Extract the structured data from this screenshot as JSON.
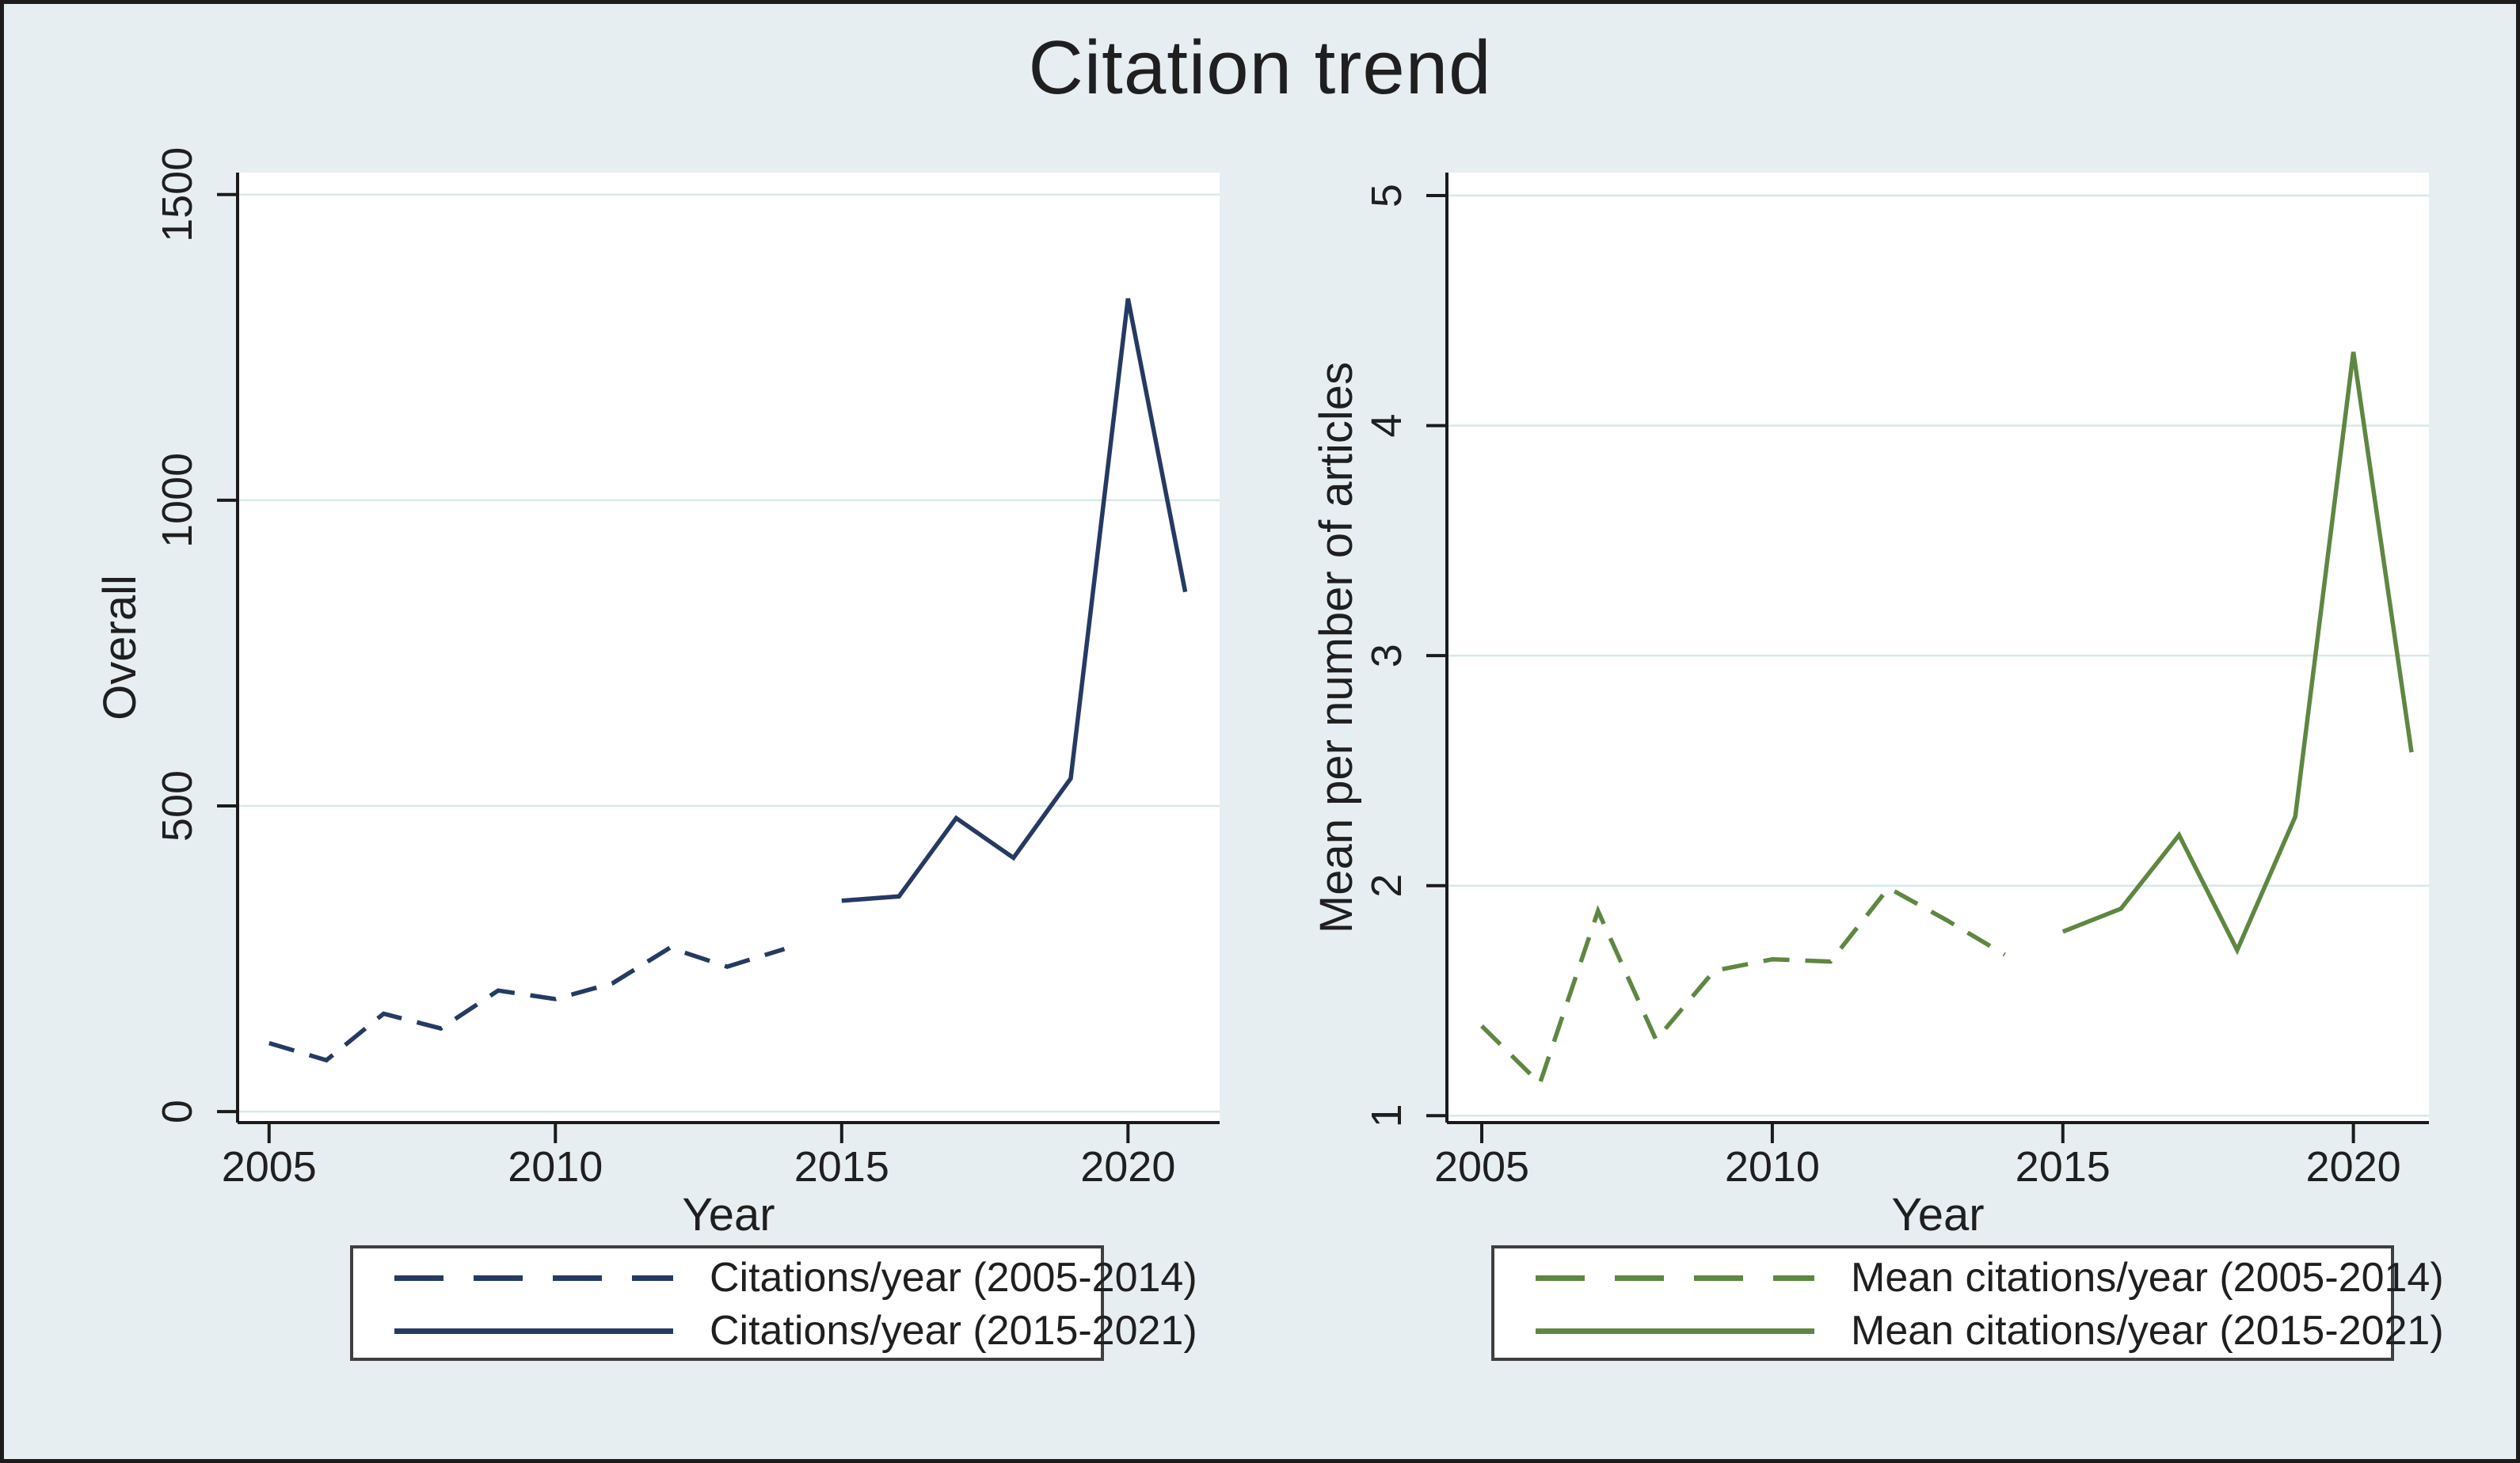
{
  "figure": {
    "title": "Citation trend",
    "background": "#e7eef1",
    "plot_background": "#ffffff",
    "grid_color": "#d8e8e8",
    "axis_color": "#1b1b1b",
    "text_color": "#1f1f1f",
    "outer_border_color": "#1c1c1c",
    "legend_border_color": "#3f3f3f",
    "legend_background": "#ffffff",
    "navy": "#253a63",
    "green": "#5e8740"
  },
  "chart_data": [
    {
      "type": "line",
      "panel": "overall",
      "xlabel": "Year",
      "ylabel": "Overall",
      "xticks": [
        2005,
        2010,
        2015,
        2020
      ],
      "yticks": [
        0,
        500,
        1000,
        1500
      ],
      "xlim": [
        2004.45,
        2021.6
      ],
      "ylim": [
        -18,
        1536
      ],
      "grid": true,
      "legend_position": "below",
      "series": [
        {
          "name": "Citations/year (2005-2014)",
          "style": "dashed",
          "color": "#253a63",
          "x": [
            2005,
            2006,
            2007,
            2008,
            2009,
            2010,
            2011,
            2012,
            2013,
            2014
          ],
          "values": [
            112,
            84,
            160,
            136,
            198,
            184,
            210,
            268,
            237,
            266
          ]
        },
        {
          "name": "Citations/year (2015-2021)",
          "style": "solid",
          "color": "#253a63",
          "x": [
            2015,
            2016,
            2017,
            2018,
            2019,
            2020,
            2021
          ],
          "values": [
            345,
            352,
            480,
            415,
            545,
            1330,
            850
          ]
        }
      ]
    },
    {
      "type": "line",
      "panel": "mean-per-articles",
      "xlabel": "Year",
      "ylabel": "Mean per number of articles",
      "xticks": [
        2005,
        2010,
        2015,
        2020
      ],
      "yticks": [
        1,
        2,
        3,
        4,
        5
      ],
      "xlim": [
        2004.4,
        2021.3
      ],
      "ylim": [
        0.97,
        5.1
      ],
      "grid": true,
      "legend_position": "below",
      "series": [
        {
          "name": "Mean citations/year (2005-2014)",
          "style": "dashed",
          "color": "#5e8740",
          "x": [
            2005,
            2006,
            2007,
            2008,
            2009,
            2010,
            2011,
            2012,
            2013,
            2014
          ],
          "values": [
            1.39,
            1.14,
            1.89,
            1.33,
            1.63,
            1.68,
            1.67,
            1.99,
            1.85,
            1.7
          ]
        },
        {
          "name": "Mean citations/year (2015-2021)",
          "style": "solid",
          "color": "#5e8740",
          "x": [
            2015,
            2016,
            2017,
            2018,
            2019,
            2020,
            2021
          ],
          "values": [
            1.8,
            1.9,
            2.22,
            1.72,
            2.3,
            4.32,
            2.58
          ]
        }
      ]
    }
  ]
}
